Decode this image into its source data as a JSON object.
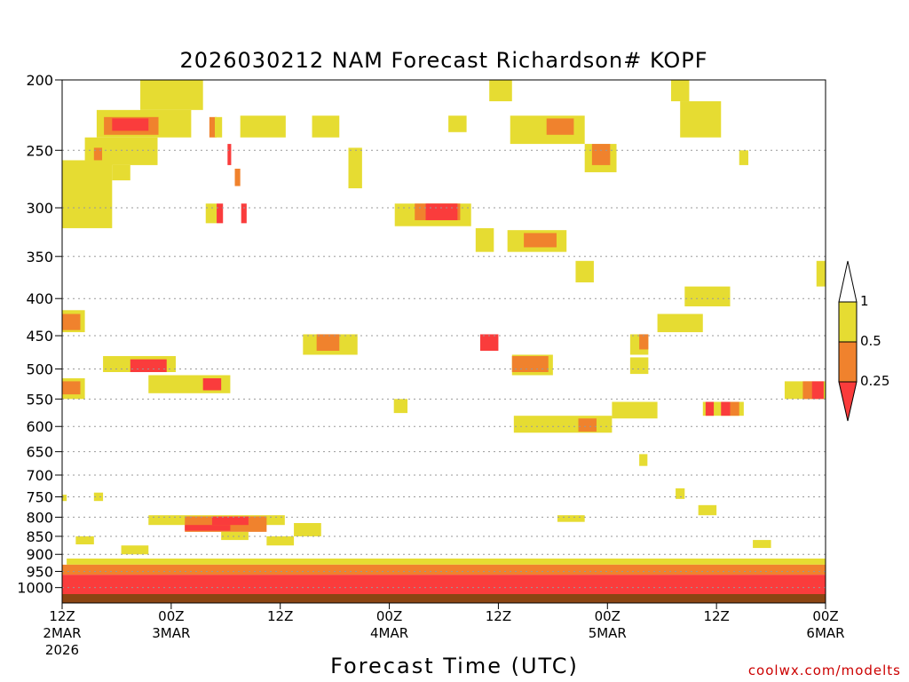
{
  "chart_data": {
    "type": "heatmap",
    "title": "2026030212 NAM Forecast Richardson# KOPF",
    "xlabel": "Forecast Time (UTC)",
    "credit": "coolwx.com/modelts",
    "y_scale": "log-pressure",
    "y_axis_inverted": true,
    "ylim": [
      1050,
      200
    ],
    "yticks": [
      200,
      250,
      300,
      350,
      400,
      450,
      500,
      550,
      600,
      650,
      700,
      750,
      800,
      850,
      900,
      950,
      1000
    ],
    "xlim_hours": [
      0,
      84
    ],
    "xticks": [
      {
        "hour": 0,
        "line1": "12Z",
        "line2": "2MAR",
        "line3": "2026"
      },
      {
        "hour": 12,
        "line1": "00Z",
        "line2": "3MAR",
        "line3": ""
      },
      {
        "hour": 24,
        "line1": "12Z",
        "line2": "",
        "line3": ""
      },
      {
        "hour": 36,
        "line1": "00Z",
        "line2": "4MAR",
        "line3": ""
      },
      {
        "hour": 48,
        "line1": "12Z",
        "line2": "",
        "line3": ""
      },
      {
        "hour": 60,
        "line1": "00Z",
        "line2": "5MAR",
        "line3": ""
      },
      {
        "hour": 72,
        "line1": "12Z",
        "line2": "",
        "line3": ""
      },
      {
        "hour": 84,
        "line1": "00Z",
        "line2": "6MAR",
        "line3": ""
      }
    ],
    "grid": "dotted horizontal at pressure ticks",
    "colorbar": {
      "levels": [
        {
          "label": "1",
          "color": "#ffffff",
          "range": "above 1"
        },
        {
          "label": "0.5",
          "color": "#e6dc32",
          "range": "0.5 to 1"
        },
        {
          "label": "0.25",
          "color": "#f0822d",
          "range": "0.25 to 0.5"
        },
        {
          "label": "",
          "color": "#fa3c3c",
          "range": "below 0.25"
        }
      ]
    },
    "colors": {
      "high": "#e6dc32",
      "mid": "#f0822d",
      "low": "#fa3c3c",
      "ground": "#8b4513"
    },
    "regions": [
      {
        "h0": 8.6,
        "h1": 15.5,
        "p0": 200,
        "p1": 220,
        "c": "high"
      },
      {
        "h0": 3.8,
        "h1": 14.2,
        "p0": 220,
        "p1": 240,
        "c": "high"
      },
      {
        "h0": 4.6,
        "h1": 10.6,
        "p0": 225,
        "p1": 238,
        "c": "mid"
      },
      {
        "h0": 5.5,
        "h1": 9.5,
        "p0": 226,
        "p1": 235,
        "c": "low"
      },
      {
        "h0": 2.5,
        "h1": 10.5,
        "p0": 240,
        "p1": 262,
        "c": "high"
      },
      {
        "h0": 3.5,
        "h1": 4.4,
        "p0": 248,
        "p1": 262,
        "c": "mid"
      },
      {
        "h0": 0.0,
        "h1": 5.5,
        "p0": 258,
        "p1": 320,
        "c": "high"
      },
      {
        "h0": 5.5,
        "h1": 7.5,
        "p0": 262,
        "p1": 275,
        "c": "high"
      },
      {
        "h0": 16.2,
        "h1": 17.0,
        "p0": 225,
        "p1": 240,
        "c": "mid"
      },
      {
        "h0": 16.8,
        "h1": 17.6,
        "p0": 225,
        "p1": 240,
        "c": "high"
      },
      {
        "h0": 18.2,
        "h1": 18.6,
        "p0": 245,
        "p1": 262,
        "c": "low"
      },
      {
        "h0": 19.0,
        "h1": 19.6,
        "p0": 265,
        "p1": 280,
        "c": "mid"
      },
      {
        "h0": 19.6,
        "h1": 24.6,
        "p0": 224,
        "p1": 240,
        "c": "high"
      },
      {
        "h0": 27.5,
        "h1": 30.5,
        "p0": 224,
        "p1": 240,
        "c": "high"
      },
      {
        "h0": 31.5,
        "h1": 33.0,
        "p0": 248,
        "p1": 282,
        "c": "high"
      },
      {
        "h0": 15.8,
        "h1": 17.0,
        "p0": 296,
        "p1": 315,
        "c": "high"
      },
      {
        "h0": 17.0,
        "h1": 17.7,
        "p0": 296,
        "p1": 315,
        "c": "low"
      },
      {
        "h0": 19.7,
        "h1": 20.3,
        "p0": 296,
        "p1": 315,
        "c": "low"
      },
      {
        "h0": 36.6,
        "h1": 45.0,
        "p0": 296,
        "p1": 318,
        "c": "high"
      },
      {
        "h0": 38.8,
        "h1": 43.8,
        "p0": 296,
        "p1": 312,
        "c": "mid"
      },
      {
        "h0": 40.0,
        "h1": 43.5,
        "p0": 296,
        "p1": 312,
        "c": "low"
      },
      {
        "h0": 45.5,
        "h1": 47.5,
        "p0": 320,
        "p1": 345,
        "c": "high"
      },
      {
        "h0": 49.0,
        "h1": 55.5,
        "p0": 322,
        "p1": 345,
        "c": "high"
      },
      {
        "h0": 50.8,
        "h1": 54.4,
        "p0": 325,
        "p1": 340,
        "c": "mid"
      },
      {
        "h0": 47.0,
        "h1": 49.5,
        "p0": 200,
        "p1": 214,
        "c": "high"
      },
      {
        "h0": 42.5,
        "h1": 44.5,
        "p0": 224,
        "p1": 236,
        "c": "high"
      },
      {
        "h0": 49.3,
        "h1": 57.5,
        "p0": 224,
        "p1": 245,
        "c": "high"
      },
      {
        "h0": 53.3,
        "h1": 56.3,
        "p0": 226,
        "p1": 238,
        "c": "mid"
      },
      {
        "h0": 57.5,
        "h1": 61.0,
        "p0": 245,
        "p1": 268,
        "c": "high"
      },
      {
        "h0": 58.3,
        "h1": 60.3,
        "p0": 245,
        "p1": 262,
        "c": "mid"
      },
      {
        "h0": 56.5,
        "h1": 58.5,
        "p0": 355,
        "p1": 380,
        "c": "high"
      },
      {
        "h0": 67.0,
        "h1": 69.0,
        "p0": 200,
        "p1": 214,
        "c": "high"
      },
      {
        "h0": 68.0,
        "h1": 72.5,
        "p0": 214,
        "p1": 240,
        "c": "high"
      },
      {
        "h0": 74.5,
        "h1": 75.5,
        "p0": 250,
        "p1": 262,
        "c": "high"
      },
      {
        "h0": 68.5,
        "h1": 73.5,
        "p0": 385,
        "p1": 410,
        "c": "high"
      },
      {
        "h0": 65.5,
        "h1": 70.5,
        "p0": 420,
        "p1": 445,
        "c": "high"
      },
      {
        "h0": 62.5,
        "h1": 64.5,
        "p0": 448,
        "p1": 478,
        "c": "high"
      },
      {
        "h0": 63.5,
        "h1": 64.5,
        "p0": 448,
        "p1": 470,
        "c": "mid"
      },
      {
        "h0": 83.0,
        "h1": 84.0,
        "p0": 355,
        "p1": 385,
        "c": "high"
      },
      {
        "h0": 0.0,
        "h1": 2.5,
        "p0": 415,
        "p1": 445,
        "c": "high"
      },
      {
        "h0": 0.0,
        "h1": 2.0,
        "p0": 420,
        "p1": 442,
        "c": "mid"
      },
      {
        "h0": 4.5,
        "h1": 12.5,
        "p0": 480,
        "p1": 505,
        "c": "high"
      },
      {
        "h0": 7.5,
        "h1": 11.5,
        "p0": 485,
        "p1": 505,
        "c": "low"
      },
      {
        "h0": 9.5,
        "h1": 18.5,
        "p0": 510,
        "p1": 540,
        "c": "high"
      },
      {
        "h0": 15.5,
        "h1": 17.5,
        "p0": 515,
        "p1": 535,
        "c": "low"
      },
      {
        "h0": 0.0,
        "h1": 2.5,
        "p0": 515,
        "p1": 550,
        "c": "high"
      },
      {
        "h0": 0.0,
        "h1": 2.0,
        "p0": 520,
        "p1": 542,
        "c": "mid"
      },
      {
        "h0": 26.5,
        "h1": 32.5,
        "p0": 448,
        "p1": 478,
        "c": "high"
      },
      {
        "h0": 28.0,
        "h1": 30.5,
        "p0": 448,
        "p1": 472,
        "c": "mid"
      },
      {
        "h0": 46.0,
        "h1": 48.0,
        "p0": 448,
        "p1": 472,
        "c": "low"
      },
      {
        "h0": 49.5,
        "h1": 54.0,
        "p0": 478,
        "p1": 510,
        "c": "high"
      },
      {
        "h0": 49.5,
        "h1": 53.5,
        "p0": 480,
        "p1": 505,
        "c": "mid"
      },
      {
        "h0": 62.5,
        "h1": 64.5,
        "p0": 482,
        "p1": 508,
        "c": "high"
      },
      {
        "h0": 36.5,
        "h1": 38.0,
        "p0": 550,
        "p1": 575,
        "c": "high"
      },
      {
        "h0": 49.7,
        "h1": 60.5,
        "p0": 580,
        "p1": 612,
        "c": "high"
      },
      {
        "h0": 56.8,
        "h1": 58.8,
        "p0": 585,
        "p1": 610,
        "c": "mid"
      },
      {
        "h0": 60.5,
        "h1": 65.5,
        "p0": 555,
        "p1": 585,
        "c": "high"
      },
      {
        "h0": 70.5,
        "h1": 75.0,
        "p0": 555,
        "p1": 580,
        "c": "high"
      },
      {
        "h0": 70.8,
        "h1": 71.7,
        "p0": 555,
        "p1": 580,
        "c": "low"
      },
      {
        "h0": 72.5,
        "h1": 73.5,
        "p0": 555,
        "p1": 580,
        "c": "low"
      },
      {
        "h0": 73.5,
        "h1": 74.5,
        "p0": 555,
        "p1": 580,
        "c": "mid"
      },
      {
        "h0": 79.5,
        "h1": 84.0,
        "p0": 520,
        "p1": 550,
        "c": "high"
      },
      {
        "h0": 81.5,
        "h1": 82.5,
        "p0": 520,
        "p1": 550,
        "c": "mid"
      },
      {
        "h0": 82.5,
        "h1": 83.8,
        "p0": 520,
        "p1": 550,
        "c": "low"
      },
      {
        "h0": 63.5,
        "h1": 64.4,
        "p0": 655,
        "p1": 680,
        "c": "high"
      },
      {
        "h0": 67.5,
        "h1": 68.5,
        "p0": 730,
        "p1": 755,
        "c": "high"
      },
      {
        "h0": 70.0,
        "h1": 72.0,
        "p0": 770,
        "p1": 795,
        "c": "high"
      },
      {
        "h0": 0.0,
        "h1": 0.5,
        "p0": 745,
        "p1": 760,
        "c": "high"
      },
      {
        "h0": 3.5,
        "h1": 4.5,
        "p0": 740,
        "p1": 760,
        "c": "high"
      },
      {
        "h0": 9.5,
        "h1": 24.5,
        "p0": 795,
        "p1": 820,
        "c": "high"
      },
      {
        "h0": 13.5,
        "h1": 22.5,
        "p0": 798,
        "p1": 838,
        "c": "mid"
      },
      {
        "h0": 16.5,
        "h1": 20.5,
        "p0": 798,
        "p1": 820,
        "c": "low"
      },
      {
        "h0": 13.5,
        "h1": 18.5,
        "p0": 820,
        "p1": 835,
        "c": "low"
      },
      {
        "h0": 17.5,
        "h1": 20.5,
        "p0": 838,
        "p1": 860,
        "c": "high"
      },
      {
        "h0": 25.5,
        "h1": 28.5,
        "p0": 815,
        "p1": 850,
        "c": "high"
      },
      {
        "h0": 22.5,
        "h1": 25.5,
        "p0": 850,
        "p1": 875,
        "c": "high"
      },
      {
        "h0": 1.5,
        "h1": 3.5,
        "p0": 850,
        "p1": 872,
        "c": "high"
      },
      {
        "h0": 54.5,
        "h1": 57.5,
        "p0": 795,
        "p1": 812,
        "c": "high"
      },
      {
        "h0": 76.0,
        "h1": 78.0,
        "p0": 860,
        "p1": 882,
        "c": "high"
      },
      {
        "h0": 6.5,
        "h1": 9.5,
        "p0": 875,
        "p1": 900,
        "c": "high"
      },
      {
        "h0": 0.5,
        "h1": 84.0,
        "p0": 912,
        "p1": 930,
        "c": "high"
      },
      {
        "h0": 0.0,
        "h1": 84.0,
        "p0": 930,
        "p1": 960,
        "c": "mid"
      },
      {
        "h0": 0.0,
        "h1": 84.0,
        "p0": 960,
        "p1": 1035,
        "c": "low"
      }
    ]
  }
}
